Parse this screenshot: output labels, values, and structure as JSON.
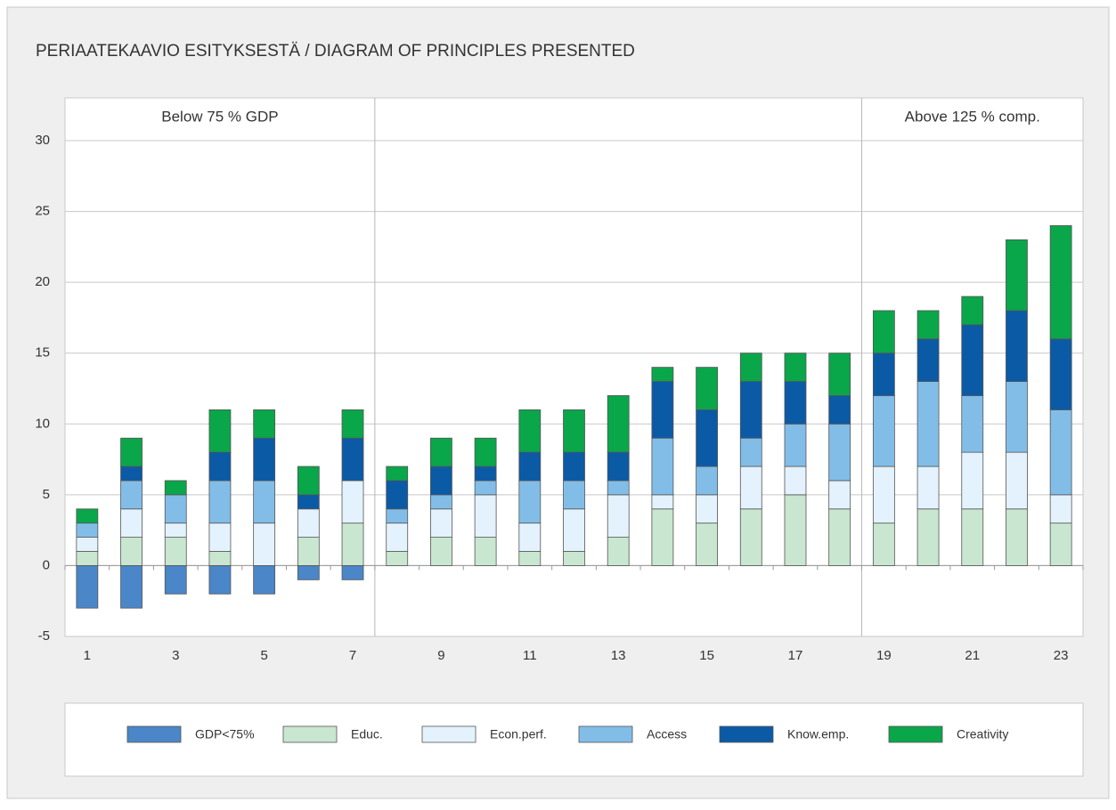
{
  "chart_data": {
    "type": "stacked_bar",
    "title": "PERIAATEKAAVIO ESITYKSESTÄ / DIAGRAM OF PRINCIPLES PRESENTED",
    "annotations": [
      "Below 75 % GDP",
      "Above 125 % comp."
    ],
    "categories": [
      1,
      null,
      3,
      null,
      5,
      null,
      7,
      null,
      9,
      null,
      11,
      null,
      13,
      null,
      15,
      null,
      17,
      null,
      19,
      null,
      21,
      null,
      23
    ],
    "series": [
      {
        "name": "GDP<75%",
        "color": "#4a86c8",
        "values": [
          -3,
          -3,
          -2,
          -2,
          -2,
          -1,
          -1,
          0,
          0,
          0,
          0,
          0,
          0,
          0,
          0,
          0,
          0,
          0,
          0,
          0,
          0,
          0,
          0
        ]
      },
      {
        "name": "Educ.",
        "color": "#c8e6d0",
        "values": [
          1,
          2,
          2,
          1,
          0,
          2,
          3,
          1,
          2,
          2,
          1,
          1,
          2,
          4,
          3,
          4,
          5,
          4,
          3,
          4,
          4,
          4,
          3
        ]
      },
      {
        "name": "Econ.perf.",
        "color": "#e3f2fc",
        "values": [
          1,
          2,
          1,
          2,
          3,
          2,
          3,
          2,
          2,
          3,
          2,
          3,
          3,
          1,
          2,
          3,
          2,
          2,
          4,
          3,
          4,
          4,
          2
        ]
      },
      {
        "name": "Access",
        "color": "#82bde8",
        "values": [
          1,
          2,
          2,
          3,
          3,
          0,
          0,
          1,
          1,
          1,
          3,
          2,
          1,
          4,
          2,
          2,
          3,
          4,
          5,
          6,
          4,
          5,
          6
        ]
      },
      {
        "name": "Know.emp.",
        "color": "#0b5aa6",
        "values": [
          0,
          1,
          0,
          2,
          3,
          1,
          3,
          2,
          2,
          1,
          2,
          2,
          2,
          4,
          4,
          4,
          3,
          2,
          3,
          3,
          5,
          5,
          5
        ]
      },
      {
        "name": "Creativity",
        "color": "#0aa64a",
        "values": [
          1,
          2,
          1,
          3,
          2,
          2,
          2,
          1,
          2,
          2,
          3,
          3,
          4,
          1,
          3,
          2,
          2,
          3,
          3,
          2,
          2,
          5,
          8
        ]
      }
    ],
    "ylim": [
      -5,
      30
    ],
    "yticks": [
      -5,
      0,
      5,
      10,
      15,
      20,
      25,
      30
    ],
    "grid": true
  }
}
